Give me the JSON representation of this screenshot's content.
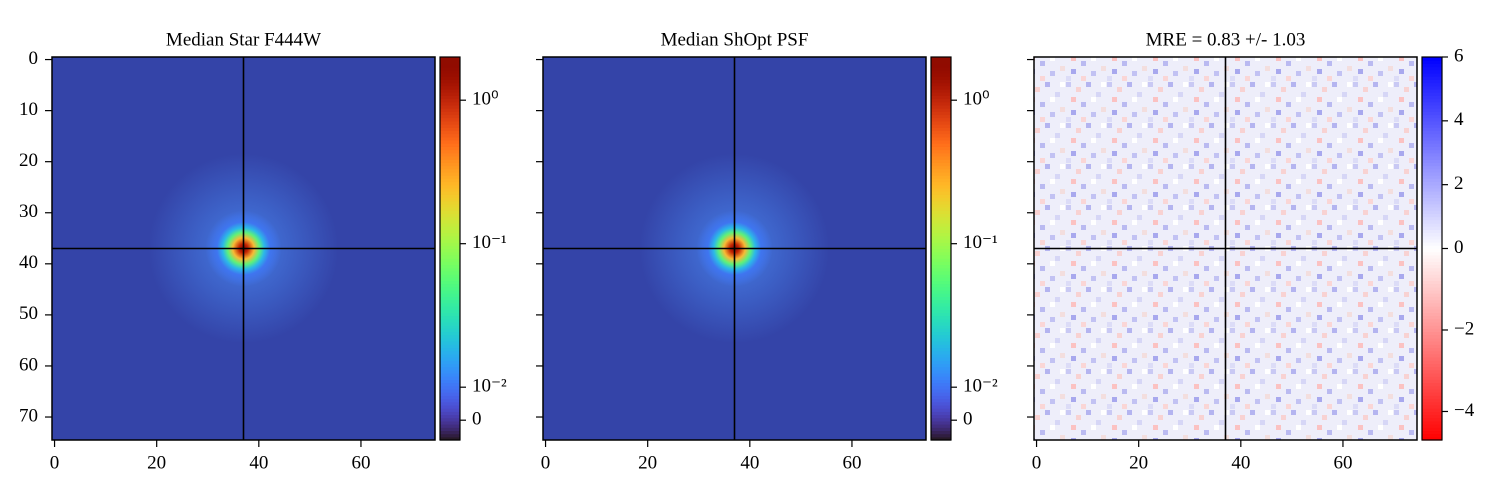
{
  "chart_data": [
    {
      "type": "heatmap",
      "title": "Median Star F444W",
      "colormap": "turbo",
      "xlim": [
        -0.5,
        74.5
      ],
      "ylim": [
        74.5,
        -0.5
      ],
      "xticks": [
        0,
        20,
        40,
        60
      ],
      "yticks": [
        0,
        10,
        20,
        30,
        40,
        50,
        60,
        70
      ],
      "crosshair": [
        37,
        37
      ],
      "colorbar": {
        "scale": "symlog",
        "lim": [
          -0.006,
          2
        ],
        "linthresh": 0.01,
        "linscale": 0.23,
        "ticks": [
          {
            "value": 1,
            "label": "10⁰"
          },
          {
            "value": 0.1,
            "label": "10⁻¹"
          },
          {
            "value": 0.01,
            "label": "10⁻²"
          },
          0
        ]
      }
    },
    {
      "type": "heatmap",
      "title": "Median ShOpt PSF",
      "colormap": "turbo",
      "xlim": [
        -0.5,
        74.5
      ],
      "ylim": [
        74.5,
        -0.5
      ],
      "xticks": [
        0,
        20,
        40,
        60
      ],
      "yticks": [
        0,
        10,
        20,
        30,
        40,
        50,
        60,
        70
      ],
      "crosshair": [
        37,
        37
      ],
      "colorbar": {
        "scale": "symlog",
        "lim": [
          -0.006,
          2
        ],
        "linthresh": 0.01,
        "linscale": 0.23,
        "ticks": [
          {
            "value": 1,
            "label": "10⁰"
          },
          {
            "value": 0.1,
            "label": "10⁻¹"
          },
          {
            "value": 0.01,
            "label": "10⁻²"
          },
          0
        ]
      }
    },
    {
      "type": "heatmap",
      "title": "MRE = 0.83 +/- 1.03",
      "colormap": "bwr_r",
      "xlim": [
        -0.5,
        74.5
      ],
      "ylim": [
        74.5,
        -0.5
      ],
      "xticks": [
        0,
        20,
        40,
        60
      ],
      "yticks": [
        0,
        10,
        20,
        30,
        40,
        50,
        60,
        70
      ],
      "crosshair": [
        37,
        37
      ],
      "colorbar": {
        "scale": "twoslope",
        "lim": [
          -4.7,
          6
        ],
        "center": 0,
        "ticks": [
          {
            "value": -4,
            "label": "−4"
          },
          {
            "value": -2,
            "label": "−2"
          },
          0,
          2,
          4,
          6
        ]
      }
    }
  ]
}
